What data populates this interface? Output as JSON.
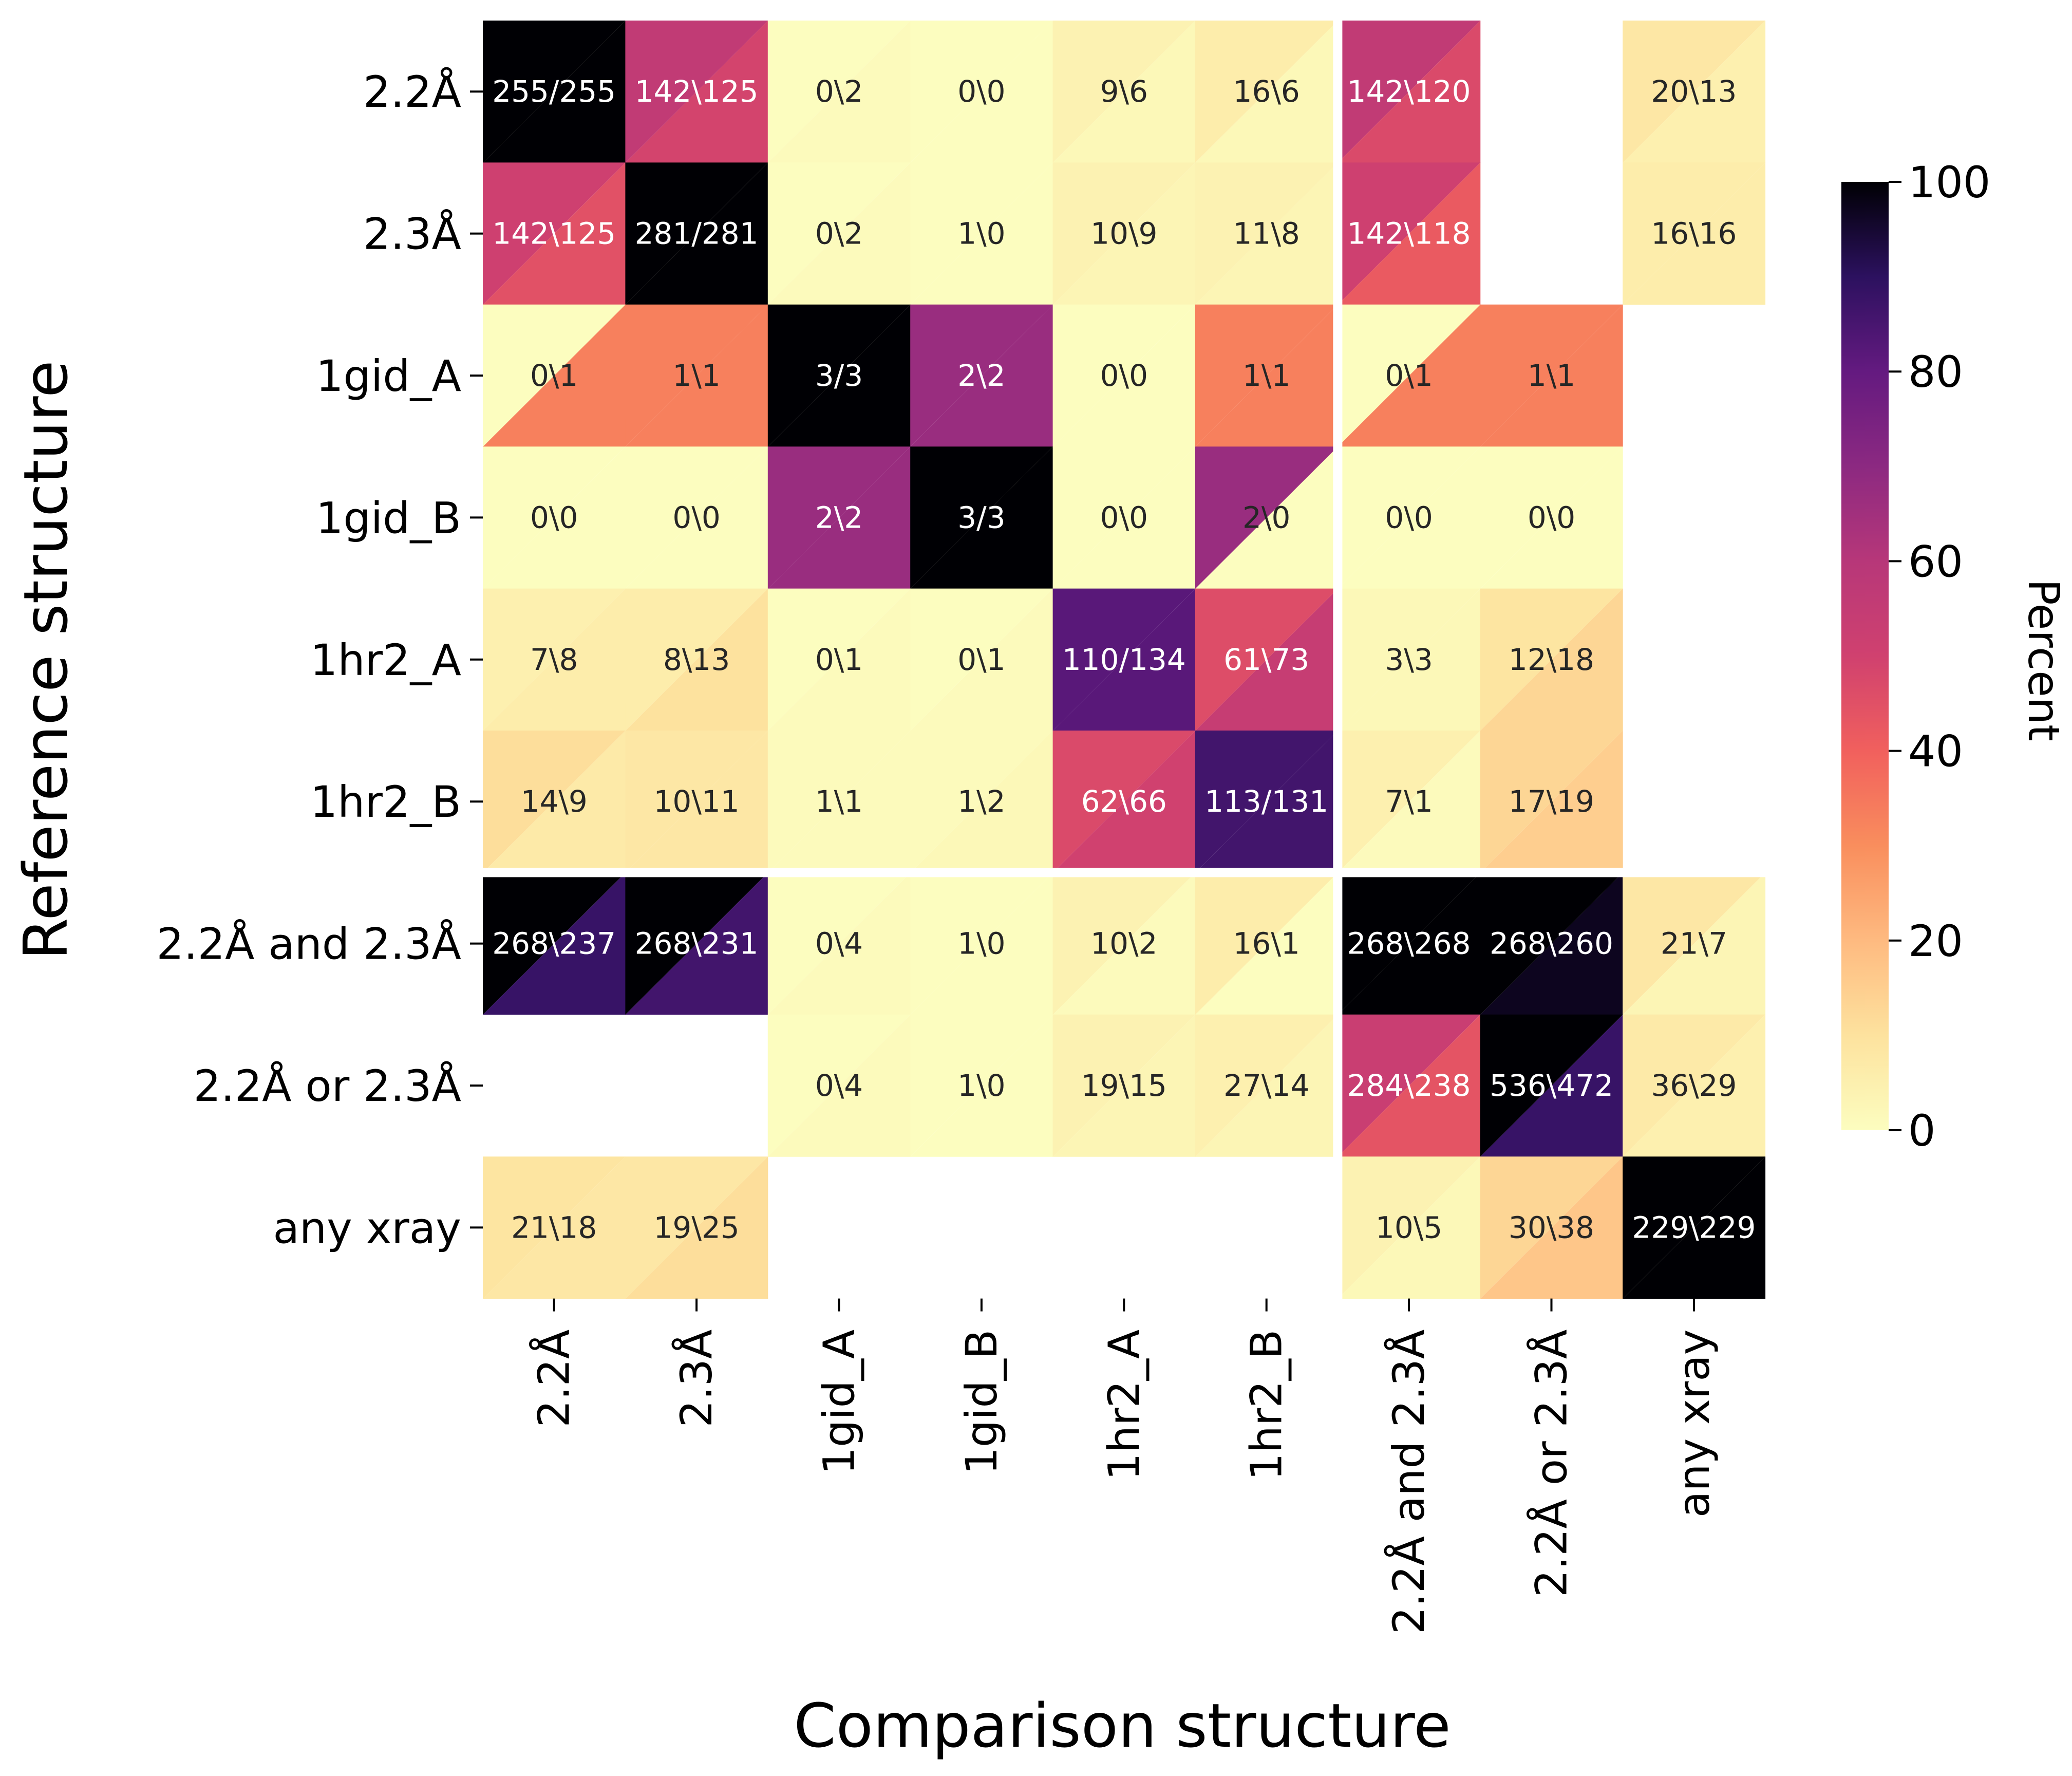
{
  "chart_data": {
    "type": "heatmap",
    "xlabel": "Comparison structure",
    "ylabel": "Reference structure",
    "x_categories": [
      "2.2Å",
      "2.3Å",
      "1gid_A",
      "1gid_B",
      "1hr2_A",
      "1hr2_B",
      "2.2Å and 2.3Å",
      "2.2Å or 2.3Å",
      "any xray"
    ],
    "y_categories": [
      "2.2Å",
      "2.3Å",
      "1gid_A",
      "1gid_B",
      "1hr2_A",
      "1hr2_B",
      "2.2Å and 2.3Å",
      "2.2Å or 2.3Å",
      "any xray"
    ],
    "colorbar": {
      "label": "Percent",
      "range": [
        0,
        100
      ],
      "ticks": [
        0,
        20,
        40,
        60,
        80,
        100
      ],
      "colormap": "magma_r"
    },
    "cells": [
      [
        "255/255",
        "142\\125",
        "0\\2",
        "0\\0",
        "9\\6",
        "16\\6",
        "142\\120",
        "",
        "20\\13"
      ],
      [
        "142\\125",
        "281/281",
        "0\\2",
        "1\\0",
        "10\\9",
        "11\\8",
        "142\\118",
        "",
        "16\\16"
      ],
      [
        "0\\1",
        "1\\1",
        "3/3",
        "2\\2",
        "0\\0",
        "1\\1",
        "0\\1",
        "1\\1",
        ""
      ],
      [
        "0\\0",
        "0\\0",
        "2\\2",
        "3/3",
        "0\\0",
        "2\\0",
        "0\\0",
        "0\\0",
        ""
      ],
      [
        "7\\8",
        "8\\13",
        "0\\1",
        "0\\1",
        "110/134",
        "61\\73",
        "3\\3",
        "12\\18",
        ""
      ],
      [
        "14\\9",
        "10\\11",
        "1\\1",
        "1\\2",
        "62\\66",
        "113/131",
        "7\\1",
        "17\\19",
        ""
      ],
      [
        "268\\237",
        "268\\231",
        "0\\4",
        "1\\0",
        "10\\2",
        "16\\1",
        "268\\268",
        "268\\260",
        "21\\7"
      ],
      [
        "",
        "",
        "0\\4",
        "1\\0",
        "19\\15",
        "27\\14",
        "284\\238",
        "536\\472",
        "36\\29"
      ],
      [
        "21\\18",
        "19\\25",
        "",
        "",
        "",
        "",
        "10\\5",
        "30\\38",
        "229\\229"
      ]
    ],
    "upper_triangle_percent": [
      [
        100,
        56,
        0,
        0,
        4,
        6,
        56,
        null,
        8
      ],
      [
        51,
        100,
        0,
        0,
        4,
        4,
        51,
        null,
        6
      ],
      [
        0,
        33,
        100,
        67,
        0,
        33,
        0,
        33,
        null
      ],
      [
        0,
        0,
        67,
        100,
        0,
        67,
        0,
        0,
        null
      ],
      [
        5,
        6,
        0,
        0,
        82,
        46,
        2,
        9,
        null
      ],
      [
        11,
        8,
        1,
        1,
        47,
        86,
        5,
        13,
        null
      ],
      [
        100,
        100,
        0,
        0,
        4,
        6,
        100,
        100,
        8
      ],
      [
        null,
        null,
        0,
        0,
        4,
        5,
        53,
        100,
        7
      ],
      [
        9,
        8,
        null,
        null,
        null,
        null,
        4,
        13,
        100
      ]
    ],
    "lower_triangle_percent": [
      [
        100,
        49,
        1,
        0,
        2,
        2,
        47,
        null,
        5
      ],
      [
        45,
        100,
        1,
        0,
        3,
        3,
        42,
        null,
        6
      ],
      [
        33,
        33,
        100,
        67,
        0,
        33,
        33,
        33,
        null
      ],
      [
        0,
        0,
        67,
        100,
        0,
        0,
        0,
        0,
        null
      ],
      [
        6,
        10,
        1,
        1,
        82,
        54,
        2,
        13,
        null
      ],
      [
        7,
        8,
        1,
        2,
        50,
        86,
        1,
        15,
        null
      ],
      [
        88,
        86,
        1,
        0,
        1,
        0,
        100,
        97,
        3
      ],
      [
        null,
        null,
        1,
        0,
        3,
        3,
        44,
        88,
        5
      ],
      [
        8,
        11,
        null,
        null,
        null,
        null,
        2,
        17,
        100
      ]
    ]
  }
}
